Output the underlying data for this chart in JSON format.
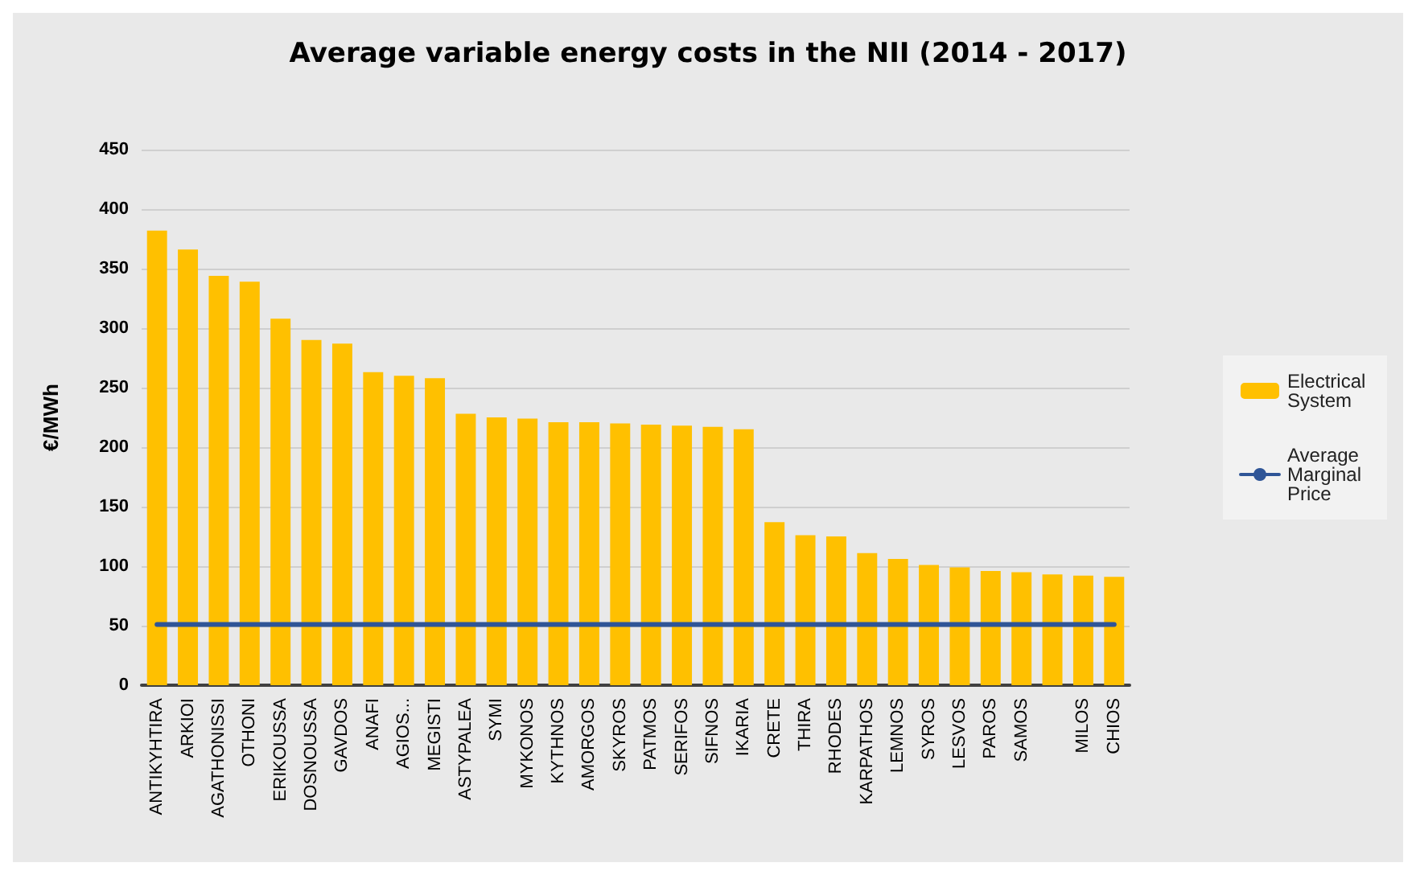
{
  "chart_data": {
    "type": "bar",
    "title": "Average variable energy costs in the NII (2014 - 2017)",
    "ylabel": "€/MWh",
    "categories": [
      "ANTIKYHTIRA",
      "ARKIOI",
      "AGATHONISSI",
      "OTHONI",
      "ERIKOUSSA",
      "DOSNOUSSA",
      "GAVDOS",
      "ANAFI",
      "AGIOS...",
      "MEGISTI",
      "ASTYPALEA",
      "SYMI",
      "MYKONOS",
      "KYTHNOS",
      "AMORGOS",
      "SKYROS",
      "PATMOS",
      "SERIFOS",
      "SIFNOS",
      "IKARIA",
      "CRETE",
      "THIRA",
      "RHODES",
      "KARPATHOS",
      "LEMNOS",
      "SYROS",
      "LESVOS",
      "PAROS",
      "SAMOS",
      null,
      "MILOS",
      "CHIOS"
    ],
    "series": [
      {
        "name": "Electrical System",
        "color": "#ffc000",
        "values": [
          382,
          366,
          344,
          339,
          308,
          290,
          287,
          263,
          260,
          258,
          228,
          225,
          224,
          221,
          221,
          220,
          219,
          218,
          217,
          215,
          137,
          126,
          125,
          111,
          106,
          101,
          99,
          96,
          95,
          93,
          92,
          91
        ]
      },
      {
        "name": "Average Marginal Price",
        "type": "line",
        "color": "#2f5597",
        "values": [
          51,
          51,
          51,
          51,
          51,
          51,
          51,
          51,
          51,
          51,
          51,
          51,
          51,
          51,
          51,
          51,
          51,
          51,
          51,
          51,
          51,
          51,
          51,
          51,
          51,
          51,
          51,
          51,
          51,
          51,
          51,
          51
        ]
      }
    ],
    "ylim": [
      0,
      450
    ],
    "yticks": [
      0,
      50,
      100,
      150,
      200,
      250,
      300,
      350,
      400,
      450
    ],
    "grid": "y",
    "legend": "right",
    "marker": "none"
  }
}
